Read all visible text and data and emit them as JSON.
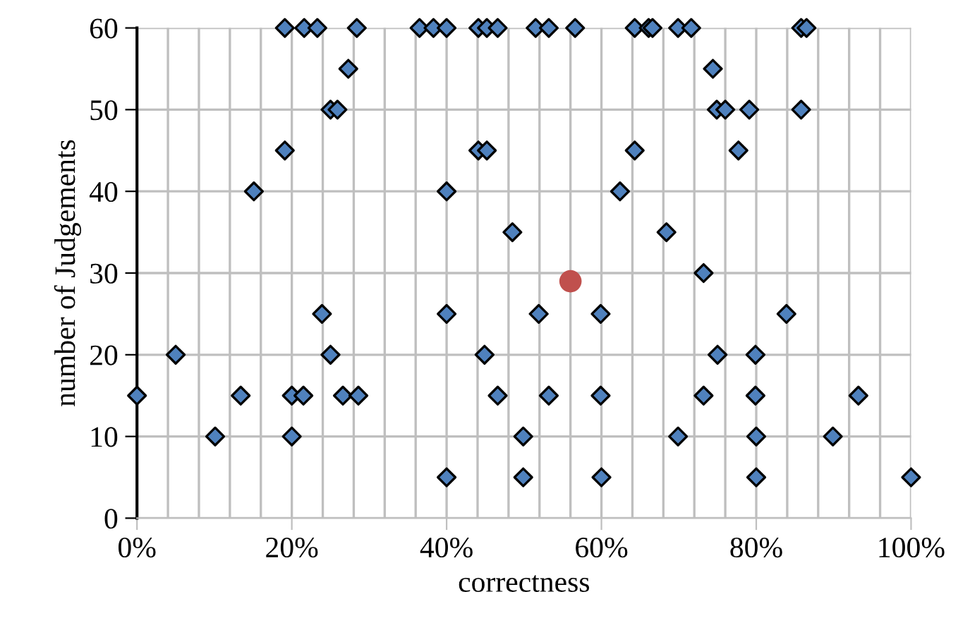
{
  "chart_data": {
    "type": "scatter",
    "xlabel": "correctness",
    "ylabel": "number of Judgements",
    "xlim": [
      0,
      100
    ],
    "ylim": [
      0,
      60
    ],
    "xticks": [
      {
        "value": 0,
        "label": "0%"
      },
      {
        "value": 20,
        "label": "20%"
      },
      {
        "value": 40,
        "label": "40%"
      },
      {
        "value": 60,
        "label": "60%"
      },
      {
        "value": 80,
        "label": "80%"
      },
      {
        "value": 100,
        "label": "100%"
      }
    ],
    "yticks": [
      0,
      10,
      20,
      30,
      40,
      50,
      60
    ],
    "grid": true,
    "series": [
      {
        "color": "#4f81bd",
        "marker": "diamond",
        "x": [
          19.1,
          21.6,
          23.3,
          28.4,
          36.5,
          38.3,
          40.0,
          44.1,
          45.2,
          46.6,
          51.5,
          53.2,
          56.6,
          64.3,
          66.1,
          66.6,
          69.9,
          71.6,
          85.8,
          86.5,
          27.3,
          25.0,
          25.9,
          19.1,
          44.1,
          45.2,
          15.1,
          40.0,
          48.5,
          74.4,
          74.9,
          76.0,
          79.1,
          85.8,
          64.3,
          77.7,
          62.4,
          68.4,
          73.2,
          23.9,
          40.0,
          5.0,
          25.0,
          44.9,
          0.0,
          13.4,
          20.0,
          21.5,
          26.6,
          28.6,
          46.6,
          10.1,
          20.0,
          40.0,
          49.9,
          49.9,
          51.9,
          59.9,
          83.9,
          75.0,
          79.9,
          53.2,
          59.9,
          73.2,
          79.9,
          93.2,
          69.9,
          80.0,
          89.9,
          60.0,
          80.0,
          100.0
        ],
        "values": [
          60,
          60,
          60,
          60,
          60,
          60,
          60,
          60,
          60,
          60,
          60,
          60,
          60,
          60,
          60,
          60,
          60,
          60,
          60,
          60,
          55,
          50,
          50,
          45,
          45,
          45,
          40,
          40,
          35,
          55,
          50,
          50,
          50,
          50,
          45,
          45,
          40,
          35,
          30,
          25,
          25,
          20,
          20,
          20,
          15,
          15,
          15,
          15,
          15,
          15,
          15,
          10,
          10,
          5,
          10,
          5,
          25,
          25,
          25,
          20,
          20,
          15,
          15,
          15,
          15,
          15,
          10,
          10,
          10,
          5,
          5,
          5
        ]
      },
      {
        "color": "#c0504d",
        "marker": "circle",
        "x": [
          56.0
        ],
        "values": [
          29
        ]
      }
    ]
  }
}
